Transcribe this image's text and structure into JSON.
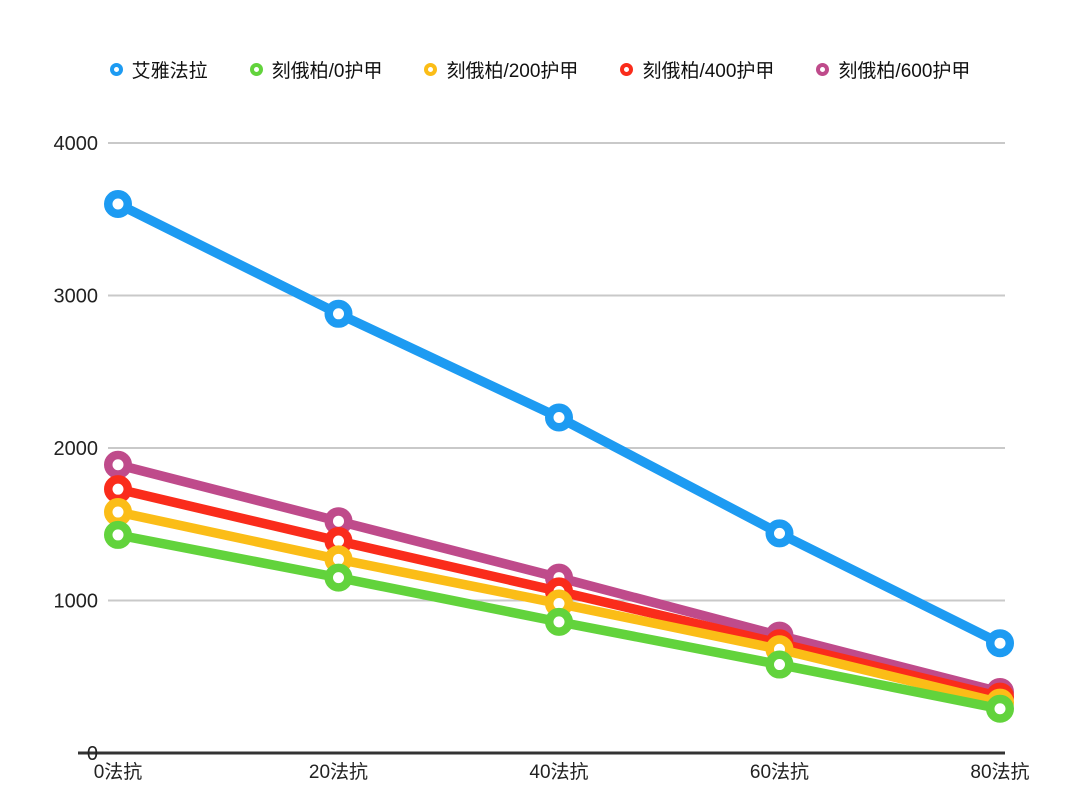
{
  "page": {
    "background": "#ffffff"
  },
  "chart_data": {
    "type": "line",
    "title": "",
    "xlabel": "",
    "ylabel": "",
    "categories": [
      "0法抗",
      "20法抗",
      "40法抗",
      "60法抗",
      "80法抗"
    ],
    "y_tick_values": [
      0,
      1000,
      2000,
      3000,
      4000
    ],
    "y_tick_labels": [
      "0",
      "1000",
      "2000",
      "3000",
      "4000"
    ],
    "ylim": [
      0,
      4000
    ],
    "grid": "horizontal-only",
    "gridline_color": "#c9c9c9",
    "axis_line_color": "#333333",
    "legend_position": "top-center",
    "marker_style": "hollow-circle",
    "series": [
      {
        "name": "艾雅法拉",
        "color": "#1D9BF2",
        "values": [
          3600,
          2880,
          2200,
          1440,
          720
        ]
      },
      {
        "name": "刻俄柏/0护甲",
        "color": "#62D33C",
        "values": [
          1430,
          1150,
          860,
          580,
          290
        ]
      },
      {
        "name": "刻俄柏/200护甲",
        "color": "#FBBD17",
        "values": [
          1580,
          1270,
          980,
          680,
          330
        ]
      },
      {
        "name": "刻俄柏/400护甲",
        "color": "#FA2C1B",
        "values": [
          1730,
          1390,
          1060,
          720,
          370
        ]
      },
      {
        "name": "刻俄柏/600护甲",
        "color": "#BF4B8B",
        "values": [
          1890,
          1520,
          1150,
          770,
          400
        ]
      }
    ]
  }
}
